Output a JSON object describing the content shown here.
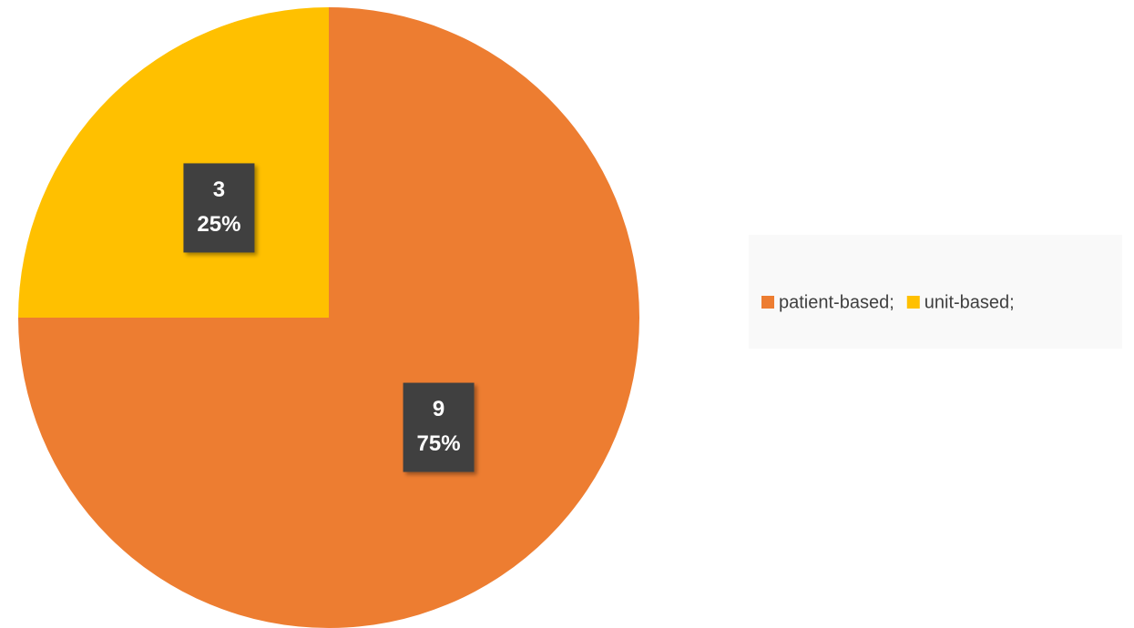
{
  "chart_data": {
    "type": "pie",
    "categories": [
      "patient-based;",
      "unit-based;"
    ],
    "values": [
      9,
      3
    ],
    "percent_labels": [
      "75%",
      "25%"
    ],
    "colors": [
      "#ED7D31",
      "#FFC000"
    ],
    "legend": "right"
  }
}
